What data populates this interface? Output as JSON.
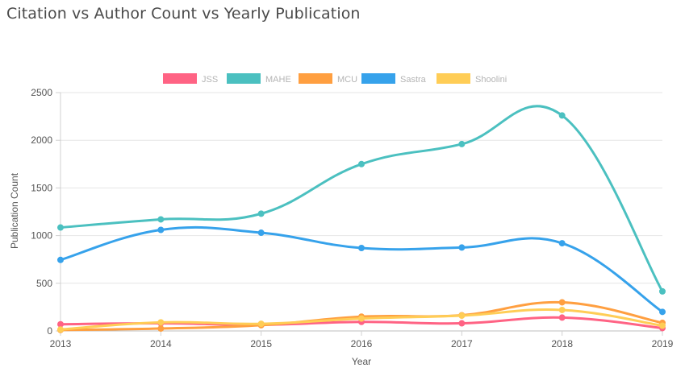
{
  "page": {
    "title": "Citation vs Author Count vs Yearly Publication"
  },
  "chart_data": {
    "type": "line",
    "title": "Citation vs Author Count vs Yearly Publication",
    "xlabel": "Year",
    "ylabel": "Publication Count",
    "categories": [
      "2013",
      "2014",
      "2015",
      "2016",
      "2017",
      "2018",
      "2019"
    ],
    "ylim": [
      0,
      2500
    ],
    "yticks": [
      "0",
      "500",
      "1000",
      "1500",
      "2000",
      "2500"
    ],
    "grid": true,
    "legend_position": "top",
    "series": [
      {
        "name": "JSS",
        "color": "#ff6384",
        "values": [
          70,
          80,
          65,
          95,
          80,
          140,
          30
        ]
      },
      {
        "name": "MAHE",
        "color": "#4bc0c0",
        "values": [
          1085,
          1170,
          1230,
          1750,
          1960,
          2260,
          415
        ]
      },
      {
        "name": "MCU",
        "color": "#ff9f40",
        "values": [
          10,
          25,
          60,
          150,
          165,
          300,
          85
        ]
      },
      {
        "name": "Sastra",
        "color": "#36a2eb",
        "values": [
          745,
          1060,
          1030,
          870,
          875,
          920,
          200
        ]
      },
      {
        "name": "Shoolini",
        "color": "#ffcd56",
        "values": [
          15,
          90,
          75,
          130,
          160,
          220,
          55
        ]
      }
    ]
  }
}
